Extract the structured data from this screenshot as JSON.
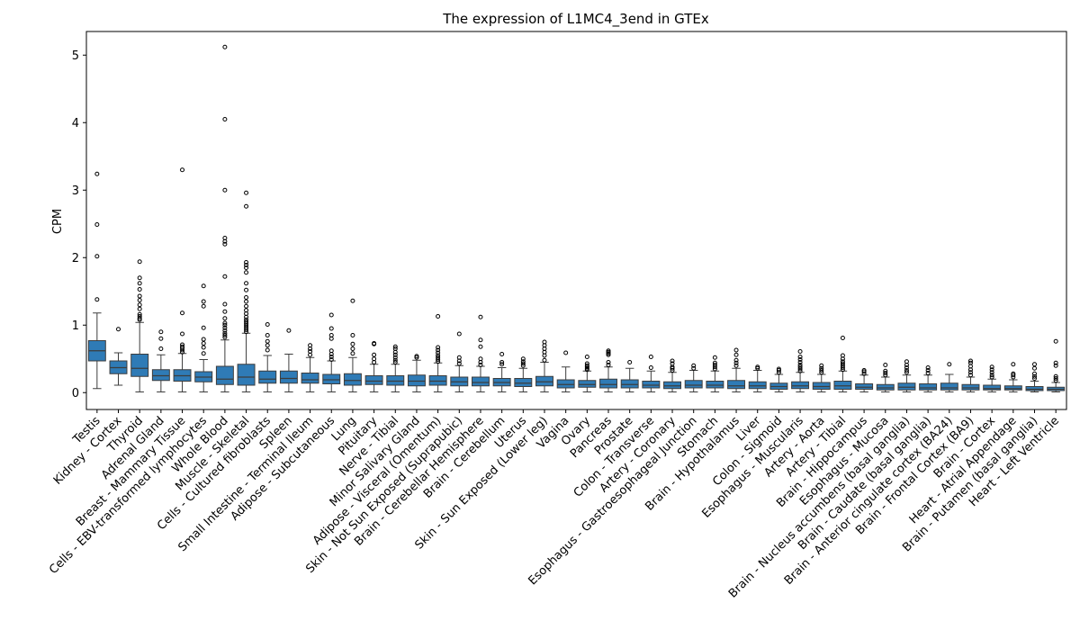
{
  "chart_data": {
    "type": "box",
    "title": "The expression of L1MC4_3end in GTEx",
    "xlabel": "",
    "ylabel": "CPM",
    "ylim": [
      -0.25,
      5.35
    ],
    "yticks": [
      0,
      1,
      2,
      3,
      4,
      5
    ],
    "grid": false,
    "box_color": "#2f7bb6",
    "categories": [
      "Testis",
      "Kidney - Cortex",
      "Thyroid",
      "Adrenal Gland",
      "Breast - Mammary Tissue",
      "Cells - EBV-transformed lymphocytes",
      "Whole Blood",
      "Muscle - Skeletal",
      "Cells - Cultured fibroblasts",
      "Spleen",
      "Small Intestine - Terminal Ileum",
      "Adipose - Subcutaneous",
      "Lung",
      "Pituitary",
      "Nerve - Tibial",
      "Minor Salivary Gland",
      "Adipose - Visceral (Omentum)",
      "Skin - Not Sun Exposed (Suprapubic)",
      "Brain - Cerebellar Hemisphere",
      "Brain - Cerebellum",
      "Uterus",
      "Skin - Sun Exposed (Lower leg)",
      "Vagina",
      "Ovary",
      "Pancreas",
      "Prostate",
      "Colon - Transverse",
      "Artery - Coronary",
      "Esophagus - Gastroesophageal Junction",
      "Stomach",
      "Brain - Hypothalamus",
      "Liver",
      "Colon - Sigmoid",
      "Esophagus - Muscularis",
      "Artery - Aorta",
      "Artery - Tibial",
      "Brain - Hippocampus",
      "Esophagus - Mucosa",
      "Brain - Nucleus accumbens (basal ganglia)",
      "Brain - Caudate (basal ganglia)",
      "Brain - Anterior cingulate cortex (BA24)",
      "Brain - Frontal Cortex (BA9)",
      "Brain - Cortex",
      "Heart - Atrial Appendage",
      "Brain - Putamen (basal ganglia)",
      "Heart - Left Ventricle"
    ],
    "boxes": [
      {
        "whislo": 0.06,
        "q1": 0.47,
        "med": 0.62,
        "q3": 0.77,
        "whishi": 1.18,
        "fliers": [
          1.38,
          2.02,
          2.49,
          3.24
        ]
      },
      {
        "whislo": 0.11,
        "q1": 0.28,
        "med": 0.37,
        "q3": 0.47,
        "whishi": 0.59,
        "fliers": [
          0.94
        ]
      },
      {
        "whislo": 0.01,
        "q1": 0.24,
        "med": 0.36,
        "q3": 0.57,
        "whishi": 1.04,
        "fliers": [
          1.08,
          1.1,
          1.13,
          1.16,
          1.24,
          1.3,
          1.37,
          1.43,
          1.53,
          1.62,
          1.7,
          1.94
        ]
      },
      {
        "whislo": 0.01,
        "q1": 0.18,
        "med": 0.25,
        "q3": 0.34,
        "whishi": 0.56,
        "fliers": [
          0.65,
          0.8,
          0.9
        ]
      },
      {
        "whislo": 0.01,
        "q1": 0.17,
        "med": 0.25,
        "q3": 0.34,
        "whishi": 0.58,
        "fliers": [
          0.6,
          0.63,
          0.66,
          0.68,
          0.71,
          0.87,
          1.18,
          3.3
        ]
      },
      {
        "whislo": 0.01,
        "q1": 0.16,
        "med": 0.23,
        "q3": 0.31,
        "whishi": 0.49,
        "fliers": [
          0.58,
          0.67,
          0.73,
          0.79,
          0.96,
          1.28,
          1.35,
          1.58
        ]
      },
      {
        "whislo": 0.01,
        "q1": 0.12,
        "med": 0.2,
        "q3": 0.39,
        "whishi": 0.78,
        "fliers": [
          0.82,
          0.85,
          0.88,
          0.92,
          0.96,
          1.0,
          1.03,
          1.1,
          1.2,
          1.31,
          1.72,
          2.2,
          2.24,
          2.29,
          3.0,
          4.05,
          5.12
        ]
      },
      {
        "whislo": 0.01,
        "q1": 0.11,
        "med": 0.23,
        "q3": 0.42,
        "whishi": 0.88,
        "fliers": [
          0.9,
          0.93,
          0.96,
          0.99,
          1.02,
          1.05,
          1.08,
          1.12,
          1.17,
          1.22,
          1.28,
          1.35,
          1.41,
          1.52,
          1.62,
          1.78,
          1.85,
          1.89,
          1.93,
          2.76,
          2.96
        ]
      },
      {
        "whislo": 0.01,
        "q1": 0.14,
        "med": 0.2,
        "q3": 0.32,
        "whishi": 0.55,
        "fliers": [
          0.63,
          0.7,
          0.76,
          0.85,
          1.01
        ]
      },
      {
        "whislo": 0.01,
        "q1": 0.14,
        "med": 0.21,
        "q3": 0.32,
        "whishi": 0.57,
        "fliers": [
          0.92
        ]
      },
      {
        "whislo": 0.01,
        "q1": 0.14,
        "med": 0.19,
        "q3": 0.29,
        "whishi": 0.52,
        "fliers": [
          0.56,
          0.61,
          0.65,
          0.7
        ]
      },
      {
        "whislo": 0.01,
        "q1": 0.13,
        "med": 0.19,
        "q3": 0.27,
        "whishi": 0.47,
        "fliers": [
          0.49,
          0.53,
          0.57,
          0.62,
          0.8,
          0.85,
          0.95,
          1.15
        ]
      },
      {
        "whislo": 0.01,
        "q1": 0.11,
        "med": 0.18,
        "q3": 0.28,
        "whishi": 0.52,
        "fliers": [
          0.58,
          0.65,
          0.72,
          0.85,
          1.36
        ]
      },
      {
        "whislo": 0.01,
        "q1": 0.12,
        "med": 0.17,
        "q3": 0.25,
        "whishi": 0.42,
        "fliers": [
          0.45,
          0.5,
          0.56,
          0.72,
          0.73
        ]
      },
      {
        "whislo": 0.01,
        "q1": 0.11,
        "med": 0.17,
        "q3": 0.25,
        "whishi": 0.42,
        "fliers": [
          0.45,
          0.48,
          0.52,
          0.56,
          0.6,
          0.65,
          0.68
        ]
      },
      {
        "whislo": 0.01,
        "q1": 0.1,
        "med": 0.17,
        "q3": 0.26,
        "whishi": 0.48,
        "fliers": [
          0.52,
          0.54
        ]
      },
      {
        "whislo": 0.01,
        "q1": 0.11,
        "med": 0.17,
        "q3": 0.25,
        "whishi": 0.44,
        "fliers": [
          0.46,
          0.49,
          0.52,
          0.55,
          0.59,
          0.63,
          0.67,
          1.13
        ]
      },
      {
        "whislo": 0.01,
        "q1": 0.1,
        "med": 0.16,
        "q3": 0.23,
        "whishi": 0.4,
        "fliers": [
          0.43,
          0.47,
          0.52,
          0.87
        ]
      },
      {
        "whislo": 0.01,
        "q1": 0.1,
        "med": 0.15,
        "q3": 0.23,
        "whishi": 0.39,
        "fliers": [
          0.41,
          0.45,
          0.5,
          0.68,
          0.78,
          1.12
        ]
      },
      {
        "whislo": 0.01,
        "q1": 0.1,
        "med": 0.15,
        "q3": 0.21,
        "whishi": 0.37,
        "fliers": [
          0.42,
          0.45,
          0.57
        ]
      },
      {
        "whislo": 0.01,
        "q1": 0.09,
        "med": 0.14,
        "q3": 0.21,
        "whishi": 0.36,
        "fliers": [
          0.4,
          0.43,
          0.46,
          0.5
        ]
      },
      {
        "whislo": 0.01,
        "q1": 0.1,
        "med": 0.16,
        "q3": 0.24,
        "whishi": 0.45,
        "fliers": [
          0.48,
          0.55,
          0.6,
          0.65,
          0.7,
          0.75
        ]
      },
      {
        "whislo": 0.01,
        "q1": 0.07,
        "med": 0.12,
        "q3": 0.19,
        "whishi": 0.38,
        "fliers": [
          0.59
        ]
      },
      {
        "whislo": 0.01,
        "q1": 0.08,
        "med": 0.12,
        "q3": 0.18,
        "whishi": 0.32,
        "fliers": [
          0.34,
          0.36,
          0.38,
          0.4,
          0.43,
          0.53
        ]
      },
      {
        "whislo": 0.01,
        "q1": 0.07,
        "med": 0.12,
        "q3": 0.2,
        "whishi": 0.38,
        "fliers": [
          0.41,
          0.45,
          0.56,
          0.58,
          0.6,
          0.62
        ]
      },
      {
        "whislo": 0.01,
        "q1": 0.07,
        "med": 0.12,
        "q3": 0.19,
        "whishi": 0.36,
        "fliers": [
          0.45
        ]
      },
      {
        "whislo": 0.01,
        "q1": 0.07,
        "med": 0.11,
        "q3": 0.17,
        "whishi": 0.32,
        "fliers": [
          0.37,
          0.53
        ]
      },
      {
        "whislo": 0.01,
        "q1": 0.06,
        "med": 0.1,
        "q3": 0.16,
        "whishi": 0.3,
        "fliers": [
          0.33,
          0.36,
          0.38,
          0.43,
          0.47
        ]
      },
      {
        "whislo": 0.01,
        "q1": 0.07,
        "med": 0.11,
        "q3": 0.18,
        "whishi": 0.33,
        "fliers": [
          0.36,
          0.4
        ]
      },
      {
        "whislo": 0.01,
        "q1": 0.07,
        "med": 0.11,
        "q3": 0.17,
        "whishi": 0.32,
        "fliers": [
          0.35,
          0.38,
          0.41,
          0.44,
          0.52
        ]
      },
      {
        "whislo": 0.01,
        "q1": 0.06,
        "med": 0.1,
        "q3": 0.18,
        "whishi": 0.36,
        "fliers": [
          0.4,
          0.44,
          0.48,
          0.56,
          0.63
        ]
      },
      {
        "whislo": 0.01,
        "q1": 0.06,
        "med": 0.1,
        "q3": 0.16,
        "whishi": 0.33,
        "fliers": [
          0.36,
          0.38
        ]
      },
      {
        "whislo": 0.01,
        "q1": 0.05,
        "med": 0.09,
        "q3": 0.14,
        "whishi": 0.27,
        "fliers": [
          0.3,
          0.33,
          0.35
        ]
      },
      {
        "whislo": 0.01,
        "q1": 0.06,
        "med": 0.1,
        "q3": 0.16,
        "whishi": 0.3,
        "fliers": [
          0.32,
          0.35,
          0.38,
          0.41,
          0.45,
          0.49,
          0.53,
          0.61
        ]
      },
      {
        "whislo": 0.01,
        "q1": 0.05,
        "med": 0.09,
        "q3": 0.15,
        "whishi": 0.27,
        "fliers": [
          0.3,
          0.33,
          0.36,
          0.4
        ]
      },
      {
        "whislo": 0.01,
        "q1": 0.05,
        "med": 0.1,
        "q3": 0.17,
        "whishi": 0.32,
        "fliers": [
          0.34,
          0.37,
          0.4,
          0.43,
          0.46,
          0.5,
          0.55,
          0.81
        ]
      },
      {
        "whislo": 0.01,
        "q1": 0.05,
        "med": 0.08,
        "q3": 0.13,
        "whishi": 0.26,
        "fliers": [
          0.28,
          0.31,
          0.33
        ]
      },
      {
        "whislo": 0.01,
        "q1": 0.04,
        "med": 0.07,
        "q3": 0.12,
        "whishi": 0.23,
        "fliers": [
          0.26,
          0.29,
          0.32,
          0.41
        ]
      },
      {
        "whislo": 0.01,
        "q1": 0.04,
        "med": 0.08,
        "q3": 0.14,
        "whishi": 0.26,
        "fliers": [
          0.3,
          0.33,
          0.37,
          0.41,
          0.46
        ]
      },
      {
        "whislo": 0.01,
        "q1": 0.04,
        "med": 0.07,
        "q3": 0.13,
        "whishi": 0.26,
        "fliers": [
          0.29,
          0.33,
          0.37
        ]
      },
      {
        "whislo": 0.01,
        "q1": 0.04,
        "med": 0.07,
        "q3": 0.14,
        "whishi": 0.27,
        "fliers": [
          0.42
        ]
      },
      {
        "whislo": 0.01,
        "q1": 0.04,
        "med": 0.07,
        "q3": 0.12,
        "whishi": 0.23,
        "fliers": [
          0.26,
          0.3,
          0.34,
          0.39,
          0.44,
          0.47
        ]
      },
      {
        "whislo": 0.01,
        "q1": 0.04,
        "med": 0.06,
        "q3": 0.11,
        "whishi": 0.2,
        "fliers": [
          0.23,
          0.26,
          0.3,
          0.34,
          0.38
        ]
      },
      {
        "whislo": 0.01,
        "q1": 0.04,
        "med": 0.06,
        "q3": 0.1,
        "whishi": 0.19,
        "fliers": [
          0.23,
          0.26,
          0.28,
          0.42
        ]
      },
      {
        "whislo": 0.01,
        "q1": 0.03,
        "med": 0.05,
        "q3": 0.09,
        "whishi": 0.17,
        "fliers": [
          0.21,
          0.24,
          0.28,
          0.36,
          0.42
        ]
      },
      {
        "whislo": 0.01,
        "q1": 0.03,
        "med": 0.05,
        "q3": 0.08,
        "whishi": 0.15,
        "fliers": [
          0.18,
          0.21,
          0.24,
          0.4,
          0.44,
          0.76
        ]
      }
    ]
  }
}
